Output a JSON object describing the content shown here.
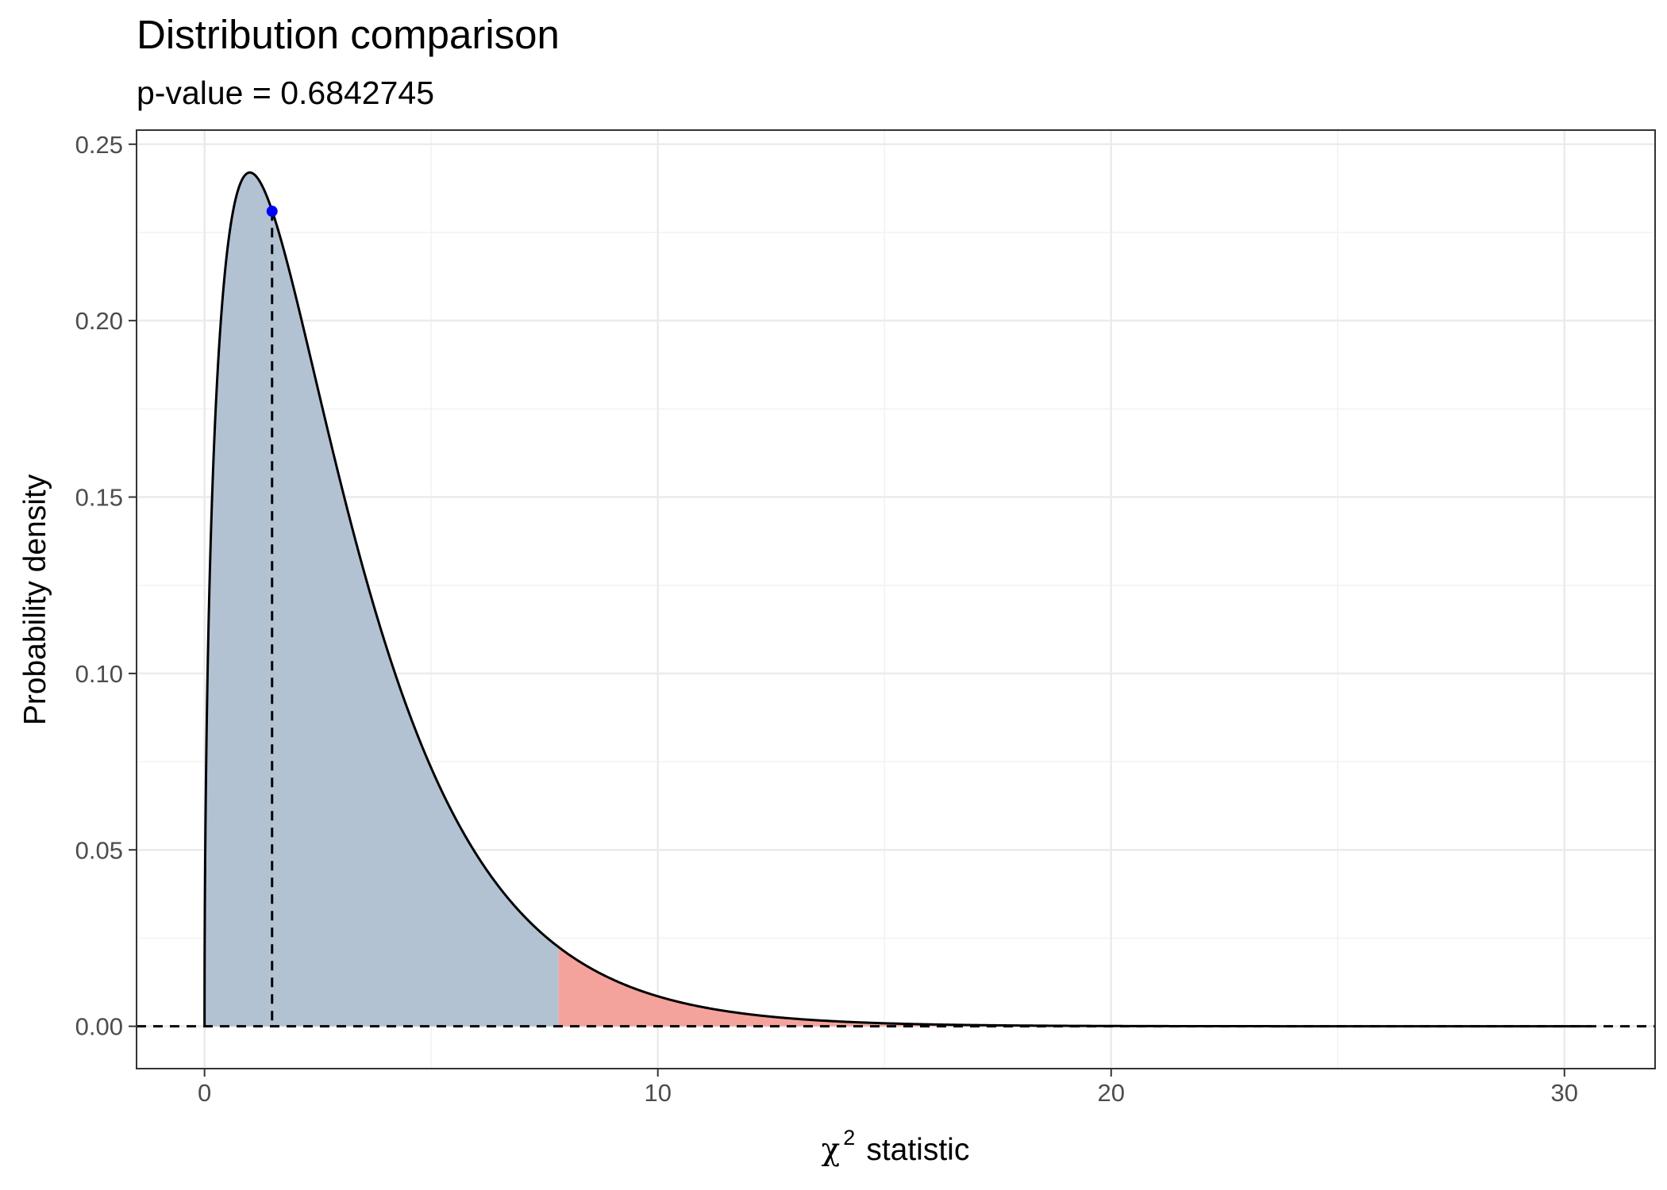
{
  "chart_data": {
    "type": "area",
    "title": "Distribution comparison",
    "subtitle": "p-value = 0.6842745",
    "xlabel": {
      "symbol": "χ",
      "superscript": "2",
      "text": "statistic"
    },
    "ylabel": "Probability density",
    "xlim": [
      -1.5,
      32.0
    ],
    "ylim": [
      -0.012,
      0.254
    ],
    "x_ticks": [
      0,
      10,
      20,
      30
    ],
    "x_tick_labels": [
      "0",
      "10",
      "20",
      "30"
    ],
    "y_ticks": [
      0,
      0.05,
      0.1,
      0.15,
      0.2,
      0.25
    ],
    "y_tick_labels": [
      "0.00",
      "0.05",
      "0.10",
      "0.15",
      "0.20",
      "0.25"
    ],
    "grid": true,
    "distribution": {
      "family": "chi-squared",
      "df": 3,
      "x_range": [
        0,
        30.6
      ]
    },
    "observed_statistic": 1.49,
    "observed_density": 0.231,
    "critical_value": 7.81,
    "regions": [
      {
        "name": "non-rejection",
        "from": 0,
        "to": 7.81,
        "color": "#b3c2d3"
      },
      {
        "name": "rejection",
        "from": 7.81,
        "to": 30.6,
        "color": "#f4a39c"
      }
    ],
    "point_color": "#0000ff",
    "curve_color": "#000000"
  }
}
